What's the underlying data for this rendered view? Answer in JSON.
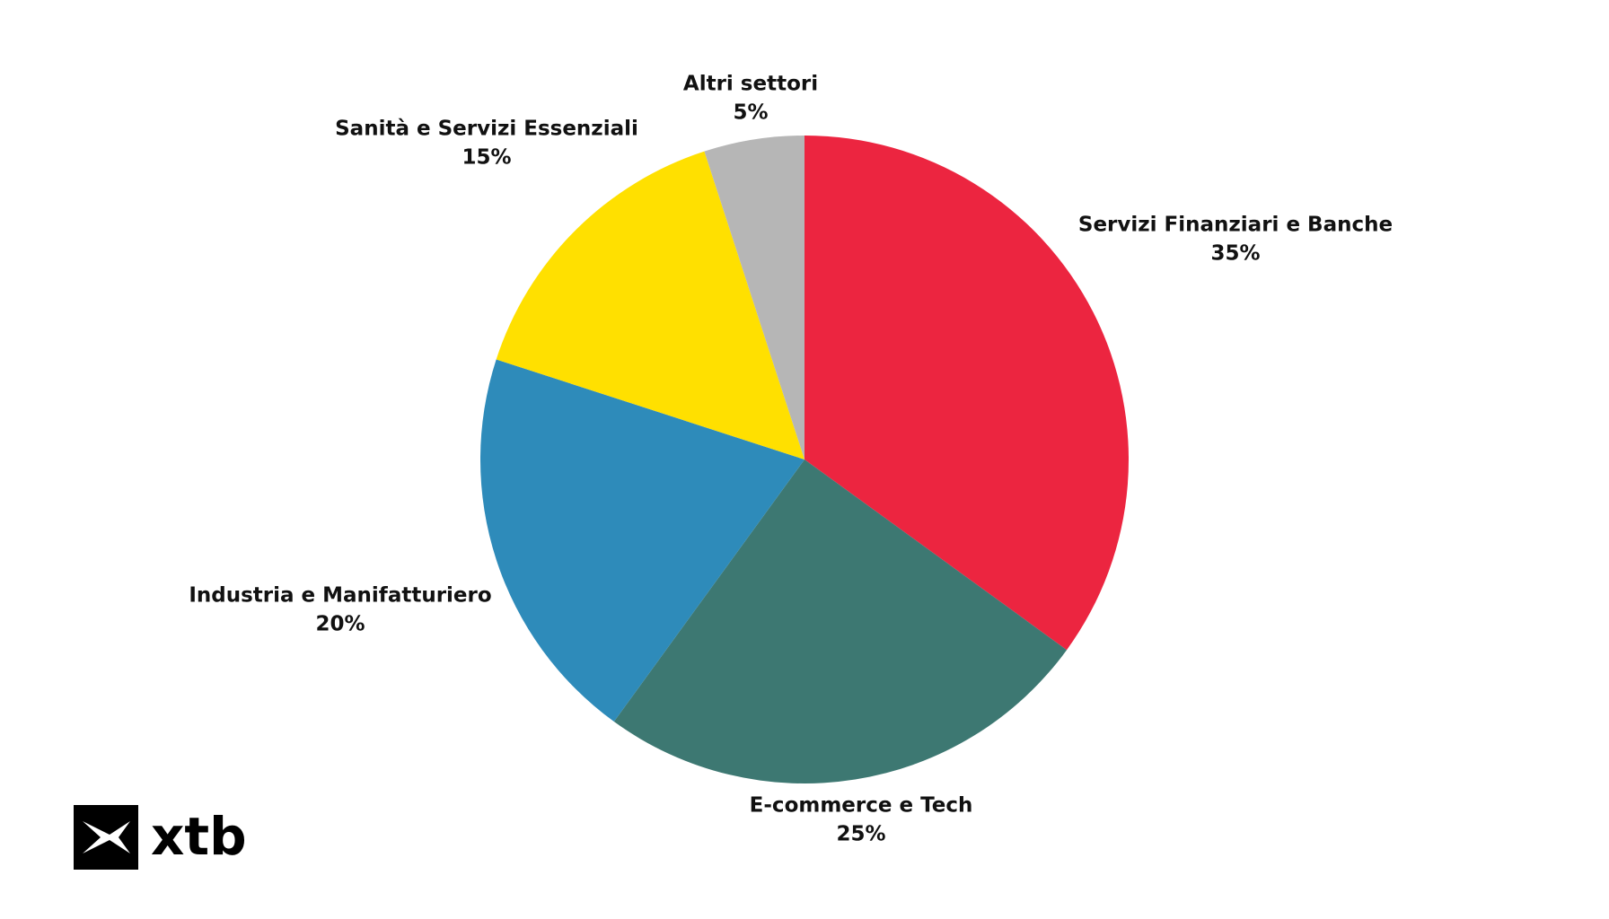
{
  "chart_data": {
    "type": "pie",
    "categories": [
      "Servizi Finanziari e Banche",
      "E-commerce e Tech",
      "Industria e Manifatturiero",
      "Sanità e Servizi Essenziali",
      "Altri settori"
    ],
    "values": [
      35,
      25,
      20,
      15,
      5
    ],
    "value_labels": [
      "35%",
      "25%",
      "20%",
      "15%",
      "5%"
    ],
    "colors": [
      "#ec2540",
      "#3d7872",
      "#2e8bba",
      "#ffe000",
      "#b6b6b6"
    ]
  },
  "logo": "xtb"
}
